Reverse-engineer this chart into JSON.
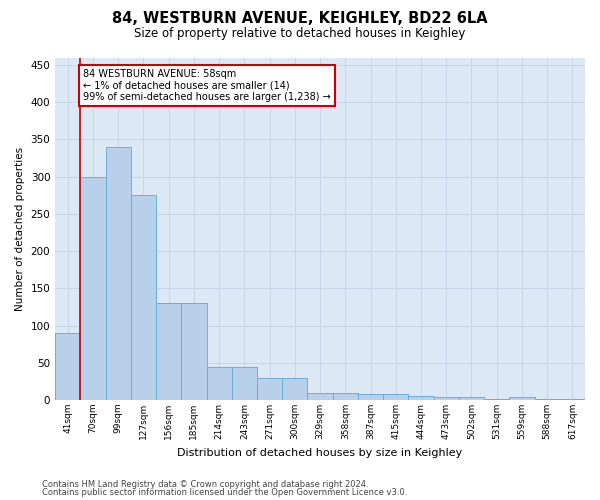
{
  "title": "84, WESTBURN AVENUE, KEIGHLEY, BD22 6LA",
  "subtitle": "Size of property relative to detached houses in Keighley",
  "xlabel": "Distribution of detached houses by size in Keighley",
  "ylabel": "Number of detached properties",
  "categories": [
    "41sqm",
    "70sqm",
    "99sqm",
    "127sqm",
    "156sqm",
    "185sqm",
    "214sqm",
    "243sqm",
    "271sqm",
    "300sqm",
    "329sqm",
    "358sqm",
    "387sqm",
    "415sqm",
    "444sqm",
    "473sqm",
    "502sqm",
    "531sqm",
    "559sqm",
    "588sqm",
    "617sqm"
  ],
  "values": [
    90,
    300,
    340,
    275,
    130,
    130,
    45,
    45,
    30,
    30,
    10,
    10,
    8,
    8,
    5,
    4,
    4,
    2,
    4,
    2,
    2
  ],
  "bar_color": "#b8d0ea",
  "bar_edge_color": "#6baed6",
  "annotation_text_line1": "84 WESTBURN AVENUE: 58sqm",
  "annotation_text_line2": "← 1% of detached houses are smaller (14)",
  "annotation_text_line3": "99% of semi-detached houses are larger (1,238) →",
  "annotation_box_color": "#ffffff",
  "annotation_box_edge_color": "#cc0000",
  "grid_color": "#c8d4e8",
  "background_color": "#dce8f5",
  "footer_line1": "Contains HM Land Registry data © Crown copyright and database right 2024.",
  "footer_line2": "Contains public sector information licensed under the Open Government Licence v3.0.",
  "ylim": [
    0,
    460
  ],
  "yticks": [
    0,
    50,
    100,
    150,
    200,
    250,
    300,
    350,
    400,
    450
  ]
}
